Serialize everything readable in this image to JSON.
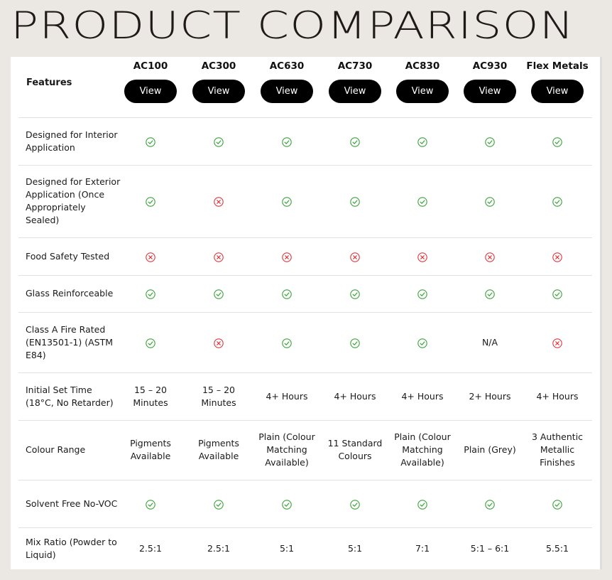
{
  "page_title": "PRODUCT COMPARISON",
  "header": {
    "features_label": "Features",
    "products": [
      "AC100",
      "AC300",
      "AC630",
      "AC730",
      "AC830",
      "AC930",
      "Flex Metals"
    ],
    "view_label": "View"
  },
  "colors": {
    "check": "#3aa33a",
    "cross": "#e0363c",
    "button_bg": "#000000"
  },
  "rows": [
    {
      "feature": "Designed for Interior Application",
      "values": [
        "check",
        "check",
        "check",
        "check",
        "check",
        "check",
        "check"
      ]
    },
    {
      "feature": "Designed for Exterior Application (Once Appropriately Sealed)",
      "values": [
        "check",
        "cross",
        "check",
        "check",
        "check",
        "check",
        "check"
      ]
    },
    {
      "feature": "Food Safety Tested",
      "values": [
        "cross",
        "cross",
        "cross",
        "cross",
        "cross",
        "cross",
        "cross"
      ]
    },
    {
      "feature": "Glass Reinforceable",
      "values": [
        "check",
        "check",
        "check",
        "check",
        "check",
        "check",
        "check"
      ]
    },
    {
      "feature": "Class A Fire Rated (EN13501-1) (ASTM E84)",
      "values": [
        "check",
        "cross",
        "check",
        "check",
        "check",
        "N/A",
        "cross"
      ]
    },
    {
      "feature": "Initial Set Time (18°C, No Retarder)",
      "values": [
        "15 – 20 Minutes",
        "15 – 20 Minutes",
        "4+ Hours",
        "4+ Hours",
        "4+ Hours",
        "2+ Hours",
        "4+ Hours"
      ]
    },
    {
      "feature": "Colour Range",
      "values": [
        "Pigments Available",
        "Pigments Available",
        "Plain (Colour Matching Available)",
        "11 Standard Colours",
        "Plain (Colour Matching Available)",
        "Plain (Grey)",
        "3 Authentic Metallic Finishes"
      ]
    },
    {
      "feature": "Solvent Free No-VOC",
      "values": [
        "check",
        "check",
        "check",
        "check",
        "check",
        "check",
        "check"
      ]
    },
    {
      "feature": "Mix Ratio (Powder to Liquid)",
      "values": [
        "2.5:1",
        "2.5:1",
        "5:1",
        "5:1",
        "7:1",
        "5:1 – 6:1",
        "5.5:1"
      ]
    }
  ]
}
